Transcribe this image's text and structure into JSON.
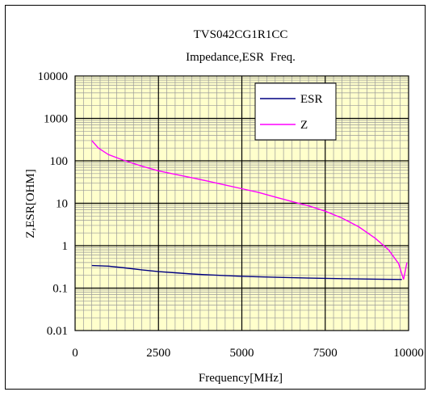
{
  "chart_data": {
    "type": "line",
    "title": "TVS042CG1R1CC",
    "subtitle": "Impedance,ESR  Freq.",
    "xlabel": "Frequency[MHz]",
    "ylabel": "Z,ESR[OHM]",
    "xlim": [
      0,
      10000
    ],
    "ylim": [
      0.01,
      10000
    ],
    "yscale": "log",
    "x_ticks": [
      0,
      2500,
      5000,
      7500,
      10000
    ],
    "x_tick_labels": [
      "0",
      "2500",
      "5000",
      "7500",
      "10000"
    ],
    "y_ticks": [
      0.01,
      0.1,
      1,
      10,
      100,
      1000,
      10000
    ],
    "y_tick_labels": [
      "0.01",
      "0.1",
      "1",
      "10",
      "100",
      "1000",
      "10000"
    ],
    "grid": true,
    "plot_background": "#FFFFCC",
    "legend_position": "top-right",
    "series": [
      {
        "name": "ESR",
        "color": "#000080",
        "points": [
          [
            500,
            0.34
          ],
          [
            1000,
            0.33
          ],
          [
            1500,
            0.3
          ],
          [
            2000,
            0.27
          ],
          [
            2500,
            0.245
          ],
          [
            3000,
            0.23
          ],
          [
            3500,
            0.215
          ],
          [
            4000,
            0.205
          ],
          [
            5000,
            0.19
          ],
          [
            6000,
            0.18
          ],
          [
            7000,
            0.172
          ],
          [
            8000,
            0.167
          ],
          [
            9000,
            0.163
          ],
          [
            9800,
            0.16
          ]
        ]
      },
      {
        "name": "Z",
        "color": "#FF00FF",
        "points": [
          [
            500,
            300
          ],
          [
            700,
            200
          ],
          [
            1000,
            140
          ],
          [
            1500,
            100
          ],
          [
            2000,
            75
          ],
          [
            2500,
            58
          ],
          [
            3000,
            48
          ],
          [
            3500,
            40
          ],
          [
            4000,
            33
          ],
          [
            4500,
            27
          ],
          [
            5000,
            22
          ],
          [
            5500,
            18
          ],
          [
            6000,
            14
          ],
          [
            6500,
            11
          ],
          [
            7000,
            8.7
          ],
          [
            7500,
            6.5
          ],
          [
            8000,
            4.5
          ],
          [
            8500,
            2.8
          ],
          [
            9000,
            1.5
          ],
          [
            9400,
            0.8
          ],
          [
            9700,
            0.38
          ],
          [
            9850,
            0.16
          ],
          [
            9950,
            0.4
          ]
        ]
      }
    ]
  }
}
